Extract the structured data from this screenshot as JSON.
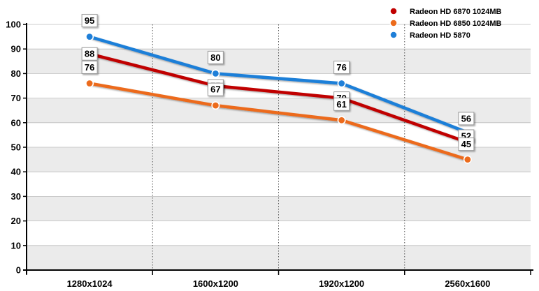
{
  "chart_data": {
    "type": "line",
    "categories": [
      "1280x1024",
      "1600x1200",
      "1920x1200",
      "2560x1600"
    ],
    "ylim": [
      0,
      100
    ],
    "yticks": [
      0,
      10,
      20,
      30,
      40,
      50,
      60,
      70,
      80,
      90,
      100
    ],
    "grid": true,
    "legend_position": "top-right",
    "series": [
      {
        "name": "Radeon HD 6870 1024MB",
        "color": "#c00000",
        "values": [
          88,
          75,
          70,
          52
        ]
      },
      {
        "name": "Radeon HD 6850 1024MB",
        "color": "#ec6b1c",
        "values": [
          76,
          67,
          61,
          45
        ]
      },
      {
        "name": "Radeon HD 5870",
        "color": "#1f7fd8",
        "values": [
          95,
          80,
          76,
          56
        ]
      }
    ]
  }
}
